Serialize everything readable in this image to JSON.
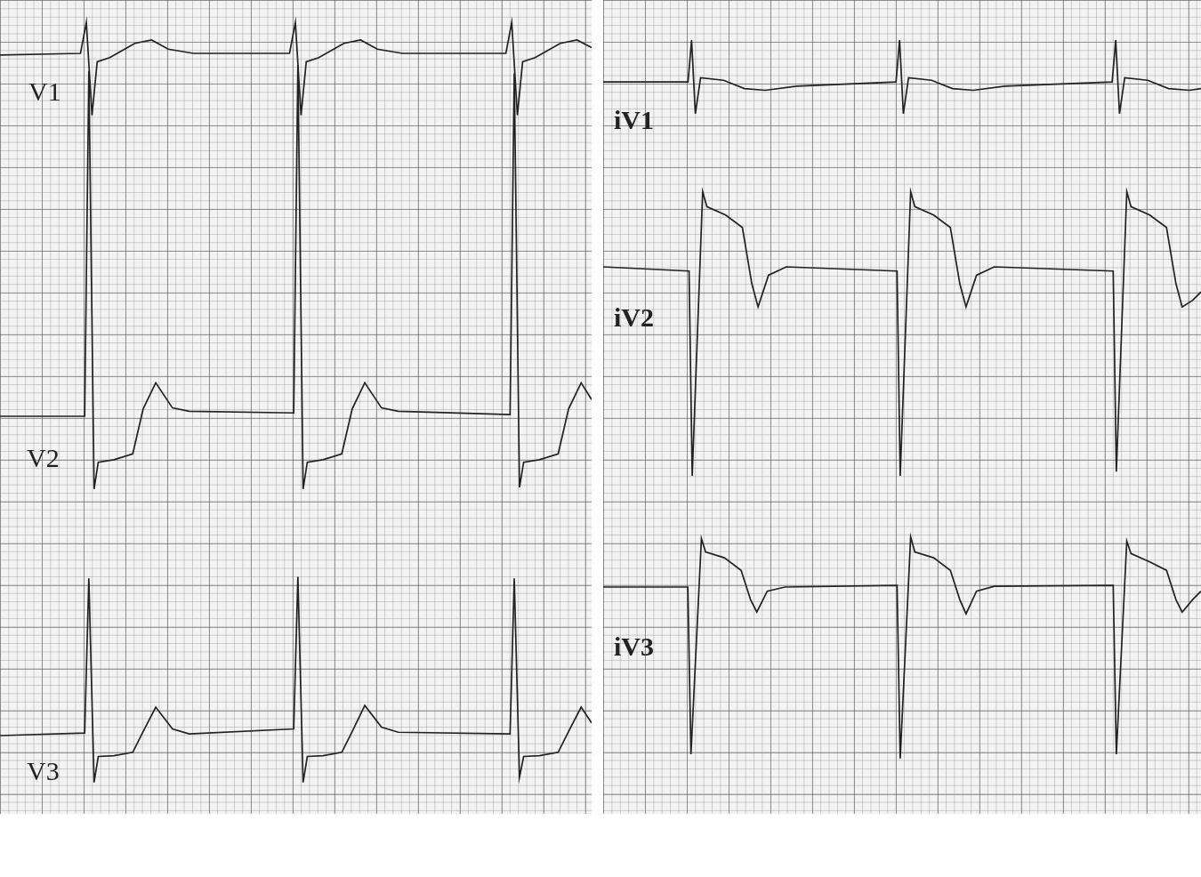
{
  "chart_data": [
    {
      "type": "line",
      "title": "V1",
      "color": "#222222",
      "grid": true,
      "tick_labels": false,
      "xlim": [
        0,
        2830
      ],
      "ylim": [
        -1,
        0.5
      ],
      "x": [
        0,
        385,
        413,
        440,
        465,
        525,
        645,
        725,
        805,
        925,
        1385,
        1413,
        1440,
        1465,
        1525,
        1645,
        1725,
        1805,
        1925,
        2420,
        2448,
        2475,
        2500,
        2560,
        2680,
        2760,
        2830
      ],
      "values": [
        -0.02,
        0,
        0.37,
        -0.74,
        -0.1,
        -0.05,
        0.12,
        0.16,
        0.05,
        0,
        0,
        0.37,
        -0.74,
        -0.1,
        -0.05,
        0.12,
        0.16,
        0.05,
        0,
        0,
        0.37,
        -0.74,
        -0.1,
        -0.05,
        0.12,
        0.16,
        0.07
      ]
    },
    {
      "type": "line",
      "title": "V2",
      "color": "#222222",
      "grid": true,
      "tick_labels": false,
      "xlim": [
        0,
        2830
      ],
      "ylim": [
        -1.5,
        4.5
      ],
      "x": [
        0,
        405,
        425,
        450,
        470,
        545,
        635,
        685,
        745,
        825,
        905,
        1405,
        1425,
        1450,
        1470,
        1545,
        1635,
        1685,
        1745,
        1825,
        1905,
        2440,
        2460,
        2485,
        2505,
        2580,
        2670,
        2720,
        2780,
        2830
      ],
      "values": [
        0,
        0,
        4.13,
        -0.87,
        -0.55,
        -0.52,
        -0.45,
        0.09,
        0.4,
        0.1,
        0.06,
        0.04,
        4.2,
        -0.87,
        -0.55,
        -0.52,
        -0.45,
        0.09,
        0.4,
        0.1,
        0.06,
        0.02,
        4.1,
        -0.85,
        -0.55,
        -0.52,
        -0.45,
        0.09,
        0.4,
        0.2
      ]
    },
    {
      "type": "line",
      "title": "V3",
      "color": "#222222",
      "grid": true,
      "tick_labels": false,
      "xlim": [
        0,
        2830
      ],
      "ylim": [
        -1,
        2.5
      ],
      "x": [
        0,
        405,
        425,
        450,
        470,
        545,
        635,
        685,
        745,
        825,
        905,
        1405,
        1425,
        1450,
        1470,
        1545,
        1635,
        1685,
        1745,
        1825,
        1905,
        2440,
        2460,
        2485,
        2505,
        2580,
        2670,
        2720,
        2780,
        2830
      ],
      "values": [
        0,
        0.03,
        1.88,
        -0.56,
        -0.25,
        -0.24,
        -0.2,
        0.05,
        0.34,
        0.08,
        0.02,
        0.08,
        1.9,
        -0.56,
        -0.25,
        -0.24,
        -0.2,
        0.05,
        0.36,
        0.1,
        0.04,
        0.02,
        1.88,
        -0.5,
        -0.25,
        -0.24,
        -0.2,
        0.05,
        0.34,
        0.15
      ]
    },
    {
      "type": "line",
      "title": "iV1",
      "color": "#222222",
      "grid": true,
      "tick_labels": false,
      "xlim": [
        0,
        2860
      ],
      "ylim": [
        -1,
        0.8
      ],
      "x": [
        0,
        406,
        423,
        441,
        466,
        576,
        676,
        776,
        926,
        1401,
        1418,
        1436,
        1461,
        1571,
        1671,
        1771,
        1921,
        2435,
        2452,
        2470,
        2495,
        2605,
        2705,
        2805,
        2860
      ],
      "values": [
        0,
        0,
        0.5,
        -0.38,
        0.05,
        0.02,
        -0.08,
        -0.1,
        -0.05,
        0,
        0.5,
        -0.38,
        0.05,
        0.02,
        -0.08,
        -0.1,
        -0.05,
        0,
        0.5,
        -0.38,
        0.05,
        0.02,
        -0.08,
        -0.1,
        -0.08
      ]
    },
    {
      "type": "line",
      "title": "iV2",
      "color": "#222222",
      "grid": true,
      "tick_labels": false,
      "xlim": [
        0,
        2860
      ],
      "ylim": [
        -3,
        1.5
      ],
      "x": [
        0,
        411,
        426,
        476,
        496,
        586,
        666,
        711,
        741,
        791,
        876,
        1406,
        1421,
        1471,
        1491,
        1581,
        1661,
        1706,
        1736,
        1786,
        1871,
        2440,
        2455,
        2505,
        2525,
        2615,
        2695,
        2740,
        2770,
        2820,
        2860
      ],
      "values": [
        0,
        -0.05,
        -2.5,
        0.9,
        0.72,
        0.62,
        0.47,
        -0.2,
        -0.48,
        -0.1,
        0,
        -0.05,
        -2.5,
        0.9,
        0.72,
        0.62,
        0.47,
        -0.2,
        -0.48,
        -0.1,
        0,
        -0.05,
        -2.45,
        0.9,
        0.72,
        0.62,
        0.47,
        -0.2,
        -0.48,
        -0.4,
        -0.3
      ]
    },
    {
      "type": "line",
      "title": "iV3",
      "color": "#222222",
      "grid": true,
      "tick_labels": false,
      "xlim": [
        0,
        2860
      ],
      "ylim": [
        -2.5,
        1
      ],
      "x": [
        0,
        405,
        420,
        470,
        490,
        580,
        660,
        705,
        735,
        785,
        870,
        1406,
        1421,
        1471,
        1491,
        1581,
        1661,
        1706,
        1736,
        1786,
        1871,
        2440,
        2455,
        2505,
        2525,
        2615,
        2695,
        2740,
        2770,
        2820,
        2860
      ],
      "values": [
        0,
        0,
        -2.0,
        0.58,
        0.42,
        0.35,
        0.2,
        -0.15,
        -0.3,
        -0.05,
        0,
        0.02,
        -2.05,
        0.6,
        0.42,
        0.35,
        0.2,
        -0.15,
        -0.32,
        -0.05,
        0.01,
        0.02,
        -2.0,
        0.55,
        0.4,
        0.3,
        0.2,
        -0.15,
        -0.3,
        -0.15,
        -0.05
      ]
    }
  ]
}
